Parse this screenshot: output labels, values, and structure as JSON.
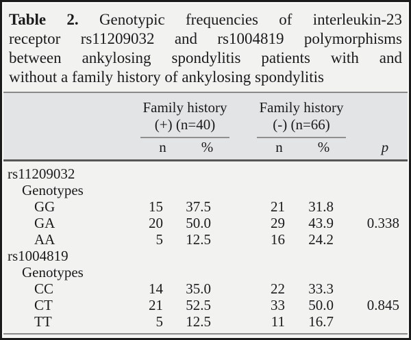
{
  "table": {
    "title": {
      "label": "Table 2.",
      "line1": "Genotypic frequencies of interleukin-23",
      "line2": "receptor rs11209032 and rs1004819 polymorphisms",
      "line3": "between ankylosing spondylitis patients with and",
      "line4": "without a family history of ankylosing spondylitis"
    },
    "groups": [
      {
        "line1": "Family history",
        "line2": "(+) (n=40)"
      },
      {
        "line1": "Family history",
        "line2": "(-) (n=66)"
      }
    ],
    "subheaders": {
      "n": "n",
      "pct": "%",
      "p": "p"
    },
    "rows": [
      {
        "label": "rs11209032",
        "indent": 0,
        "n1": "",
        "pct1": "",
        "n2": "",
        "pct2": "",
        "p": ""
      },
      {
        "label": "Genotypes",
        "indent": 1,
        "n1": "",
        "pct1": "",
        "n2": "",
        "pct2": "",
        "p": ""
      },
      {
        "label": "GG",
        "indent": 2,
        "n1": "15",
        "pct1": "37.5",
        "n2": "21",
        "pct2": "31.8",
        "p": ""
      },
      {
        "label": "GA",
        "indent": 2,
        "n1": "20",
        "pct1": "50.0",
        "n2": "29",
        "pct2": "43.9",
        "p": "0.338"
      },
      {
        "label": "AA",
        "indent": 2,
        "n1": "5",
        "pct1": "12.5",
        "n2": "16",
        "pct2": "24.2",
        "p": ""
      },
      {
        "label": "rs1004819",
        "indent": 0,
        "n1": "",
        "pct1": "",
        "n2": "",
        "pct2": "",
        "p": ""
      },
      {
        "label": "Genotypes",
        "indent": 1,
        "n1": "",
        "pct1": "",
        "n2": "",
        "pct2": "",
        "p": ""
      },
      {
        "label": "CC",
        "indent": 2,
        "n1": "14",
        "pct1": "35.0",
        "n2": "22",
        "pct2": "33.3",
        "p": ""
      },
      {
        "label": "CT",
        "indent": 2,
        "n1": "21",
        "pct1": "52.5",
        "n2": "33",
        "pct2": "50.0",
        "p": "0.845"
      },
      {
        "label": "TT",
        "indent": 2,
        "n1": "5",
        "pct1": "12.5",
        "n2": "11",
        "pct2": "16.7",
        "p": ""
      }
    ]
  },
  "colors": {
    "frame_border": "#1b1b1b",
    "content_background": "#f2f2f1",
    "header_band_background": "#e3e4e6",
    "rule_gray": "#8a8a8a",
    "thick_rule": "#565656",
    "text": "#1a1a1a"
  }
}
